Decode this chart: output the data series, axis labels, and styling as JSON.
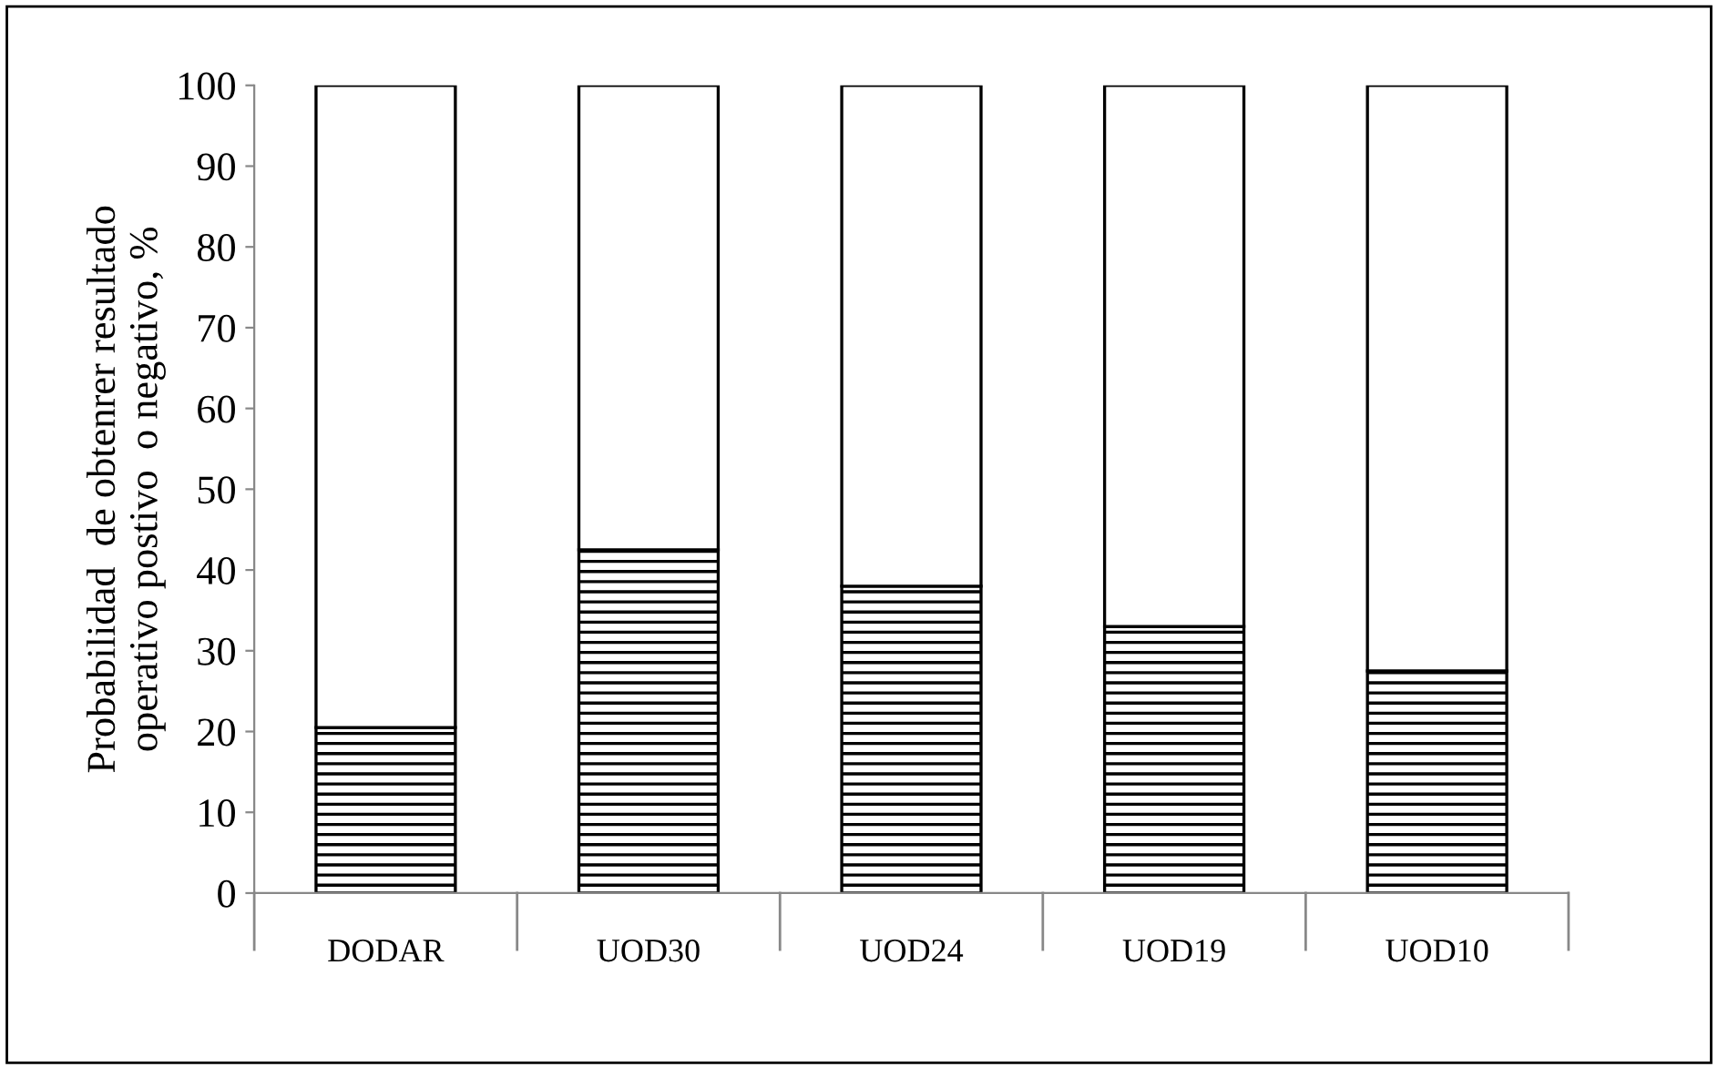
{
  "chart_data": {
    "type": "bar",
    "stacked": true,
    "ylabel": "Probabilidad  de obtenrer resultado\noperativo postivo  o negativo, %",
    "categories": [
      "DODAR",
      "UOD30",
      "UOD24",
      "UOD19",
      "UOD10"
    ],
    "series": [
      {
        "color": "#000000",
        "values": [
          20.5,
          42.5,
          38,
          33,
          27.5
        ]
      },
      {
        "color": "#ffffff",
        "values": [
          79.5,
          57.5,
          62,
          67,
          72.5
        ]
      }
    ],
    "ylim": [
      0,
      100
    ],
    "yticks": [
      0,
      10,
      20,
      30,
      40,
      50,
      60,
      70,
      80,
      90,
      100
    ],
    "grid": false,
    "legend": false
  }
}
